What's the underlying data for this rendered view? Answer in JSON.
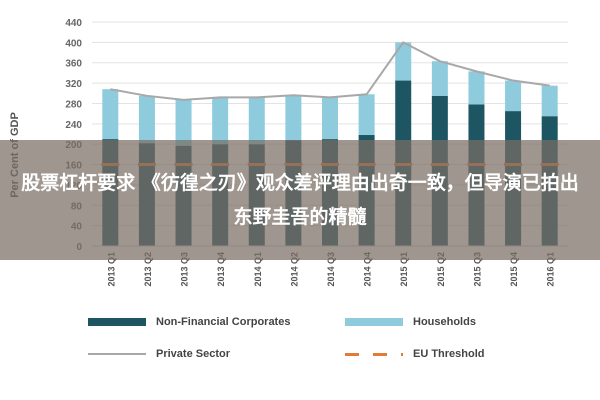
{
  "chart_data": {
    "type": "bar",
    "stacked": true,
    "title": "",
    "ylabel": "Per Cent of GDP",
    "xlabel": "",
    "ylim": [
      0,
      440
    ],
    "yticks": [
      0,
      40,
      80,
      120,
      160,
      200,
      240,
      280,
      320,
      360,
      400,
      440
    ],
    "grid": true,
    "legend_position": "bottom",
    "categories": [
      "2013 Q1",
      "2013 Q2",
      "2013 Q3",
      "2013 Q4",
      "2014 Q1",
      "2014 Q2",
      "2014 Q3",
      "2014 Q4",
      "2015 Q1",
      "2015 Q2",
      "2015 Q3",
      "2015 Q4",
      "2016 Q1"
    ],
    "series": [
      {
        "name": "Non-Financial Corporates",
        "kind": "bar",
        "values": [
          210,
          202,
          197,
          200,
          200,
          208,
          210,
          218,
          325,
          295,
          278,
          265,
          255
        ]
      },
      {
        "name": "Households",
        "kind": "bar",
        "values": [
          98,
          93,
          90,
          92,
          92,
          88,
          82,
          80,
          75,
          68,
          65,
          60,
          60
        ]
      },
      {
        "name": "Private Sector",
        "kind": "line",
        "values": [
          308,
          295,
          287,
          292,
          292,
          296,
          292,
          298,
          400,
          363,
          343,
          325,
          315
        ]
      },
      {
        "name": "EU Threshold",
        "kind": "dashed-line",
        "values": [
          160,
          160,
          160,
          160,
          160,
          160,
          160,
          160,
          160,
          160,
          160,
          160,
          160
        ]
      }
    ],
    "colors": {
      "corporates": "#1e5563",
      "households": "#8dcbdd",
      "private": "#a8a8a8",
      "threshold": "#e07b39",
      "grid": "#e3e3e3"
    }
  },
  "overlay_caption": "股票杠杆要求 《彷徨之刃》观众差评理由出奇一致，但导演已拍出东野圭吾的精髓"
}
